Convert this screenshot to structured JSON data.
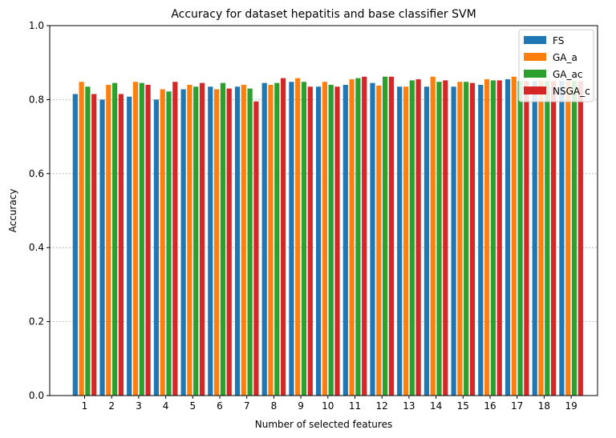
{
  "chart_data": {
    "type": "bar",
    "title": "Accuracy for dataset hepatitis and base classifier SVM",
    "xlabel": "Number of selected features",
    "ylabel": "Accuracy",
    "ylim": [
      0,
      1.0
    ],
    "yticks": [
      "0.0",
      "0.2",
      "0.4",
      "0.6",
      "0.8",
      "1.0"
    ],
    "grid": "horizontal dotted",
    "legend_position": "top-right",
    "categories": [
      "1",
      "2",
      "3",
      "4",
      "5",
      "6",
      "7",
      "8",
      "9",
      "10",
      "11",
      "12",
      "13",
      "14",
      "15",
      "16",
      "17",
      "18",
      "19"
    ],
    "series": [
      {
        "name": "FS",
        "color": "#1f77b4",
        "values": [
          0.815,
          0.8,
          0.808,
          0.8,
          0.828,
          0.835,
          0.835,
          0.845,
          0.848,
          0.835,
          0.84,
          0.845,
          0.835,
          0.835,
          0.835,
          0.84,
          0.855,
          0.85,
          0.85
        ]
      },
      {
        "name": "GA_a",
        "color": "#ff7f0e",
        "values": [
          0.848,
          0.84,
          0.848,
          0.828,
          0.84,
          0.828,
          0.84,
          0.84,
          0.858,
          0.848,
          0.855,
          0.838,
          0.835,
          0.862,
          0.848,
          0.855,
          0.862,
          0.85,
          0.85
        ]
      },
      {
        "name": "GA_ac",
        "color": "#2ca02c",
        "values": [
          0.835,
          0.845,
          0.845,
          0.822,
          0.835,
          0.845,
          0.83,
          0.845,
          0.848,
          0.84,
          0.858,
          0.862,
          0.852,
          0.848,
          0.848,
          0.852,
          0.85,
          0.85,
          0.85
        ]
      },
      {
        "name": "NSGA_c",
        "color": "#d62728",
        "values": [
          0.815,
          0.815,
          0.84,
          0.848,
          0.845,
          0.83,
          0.795,
          0.858,
          0.835,
          0.835,
          0.862,
          0.862,
          0.855,
          0.852,
          0.845,
          0.852,
          0.85,
          0.85,
          0.85
        ]
      }
    ]
  }
}
